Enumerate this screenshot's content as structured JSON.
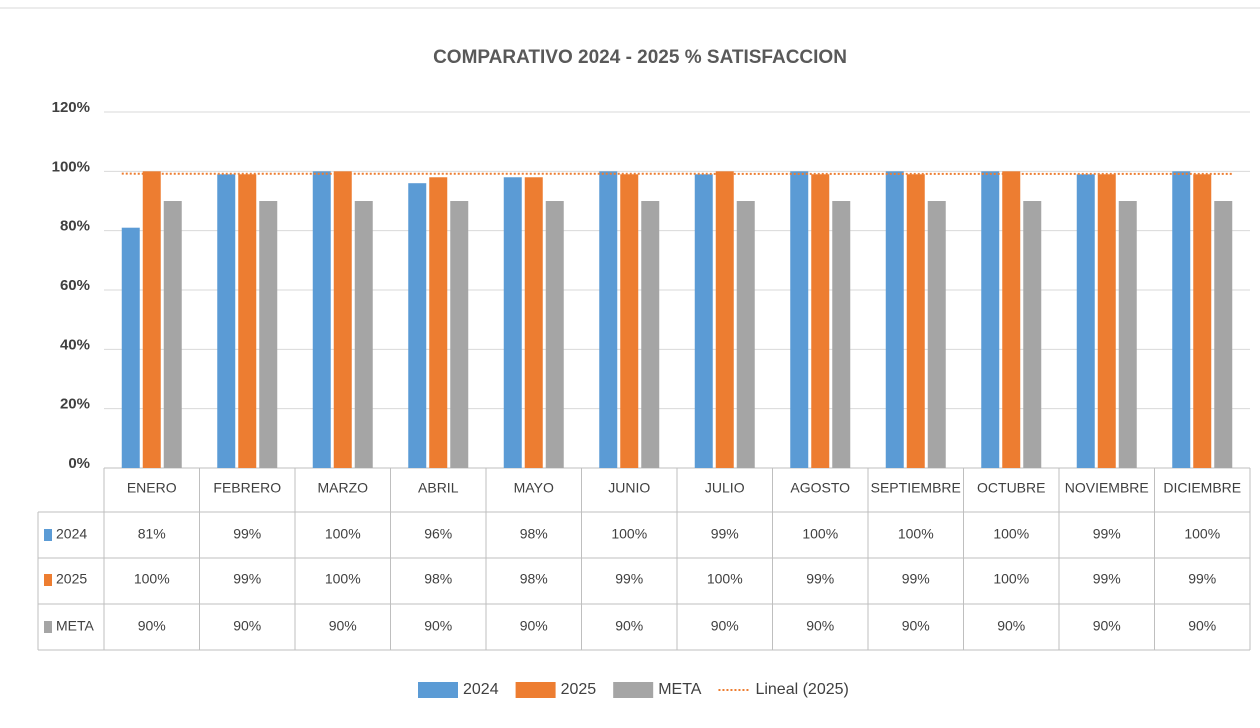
{
  "chart_data": {
    "type": "bar",
    "title": "COMPARATIVO 2024 - 2025 % SATISFACCION",
    "categories": [
      "ENERO",
      "FEBRERO",
      "MARZO",
      "ABRIL",
      "MAYO",
      "JUNIO",
      "JULIO",
      "AGOSTO",
      "SEPTIEMBRE",
      "OCTUBRE",
      "NOVIEMBRE",
      "DICIEMBRE"
    ],
    "series": [
      {
        "name": "2024",
        "color": "#5b9bd5",
        "values": [
          81,
          99,
          100,
          96,
          98,
          100,
          99,
          100,
          100,
          100,
          99,
          100
        ],
        "value_labels": [
          "81%",
          "99%",
          "100%",
          "96%",
          "98%",
          "100%",
          "99%",
          "100%",
          "100%",
          "100%",
          "99%",
          "100%"
        ]
      },
      {
        "name": "2025",
        "color": "#ed7d31",
        "values": [
          100,
          99,
          100,
          98,
          98,
          99,
          100,
          99,
          99,
          100,
          99,
          99
        ],
        "value_labels": [
          "100%",
          "99%",
          "100%",
          "98%",
          "98%",
          "99%",
          "100%",
          "99%",
          "99%",
          "100%",
          "99%",
          "99%"
        ]
      },
      {
        "name": "META",
        "color": "#a5a5a5",
        "values": [
          90,
          90,
          90,
          90,
          90,
          90,
          90,
          90,
          90,
          90,
          90,
          90
        ],
        "value_labels": [
          "90%",
          "90%",
          "90%",
          "90%",
          "90%",
          "90%",
          "90%",
          "90%",
          "90%",
          "90%",
          "90%",
          "90%"
        ]
      }
    ],
    "trendline": {
      "name": "Lineal (2025)",
      "of": "2025",
      "color": "#ed7d31"
    },
    "ylim": [
      0,
      120
    ],
    "yticks": [
      {
        "value": 0,
        "label": "0%"
      },
      {
        "value": 20,
        "label": "20%"
      },
      {
        "value": 40,
        "label": "40%"
      },
      {
        "value": 60,
        "label": "60%"
      },
      {
        "value": 80,
        "label": "80%"
      },
      {
        "value": 100,
        "label": "100%"
      },
      {
        "value": 120,
        "label": "120%"
      }
    ],
    "grid": true
  }
}
